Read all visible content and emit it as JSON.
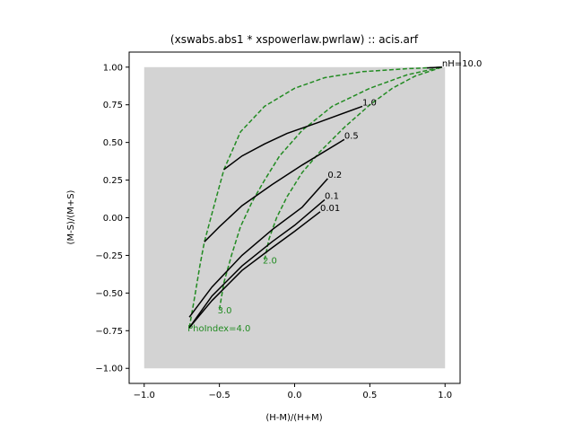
{
  "chart_data": {
    "type": "line",
    "title": "(xswabs.abs1 * xspowerlaw.pwrlaw) :: acis.arf",
    "xlabel": "(H-M)/(H+M)",
    "ylabel": "(M-S)/(M+S)",
    "xlim": [
      -1.1,
      1.1
    ],
    "ylim": [
      -1.1,
      1.1
    ],
    "xticks": [
      -1.0,
      -0.5,
      0.0,
      0.5,
      1.0
    ],
    "xtick_labels": [
      "−1.0",
      "−0.5",
      "0.0",
      "0.5",
      "1.0"
    ],
    "yticks": [
      -1.0,
      -0.75,
      -0.5,
      -0.25,
      0.0,
      0.25,
      0.5,
      0.75,
      1.0
    ],
    "ytick_labels": [
      "−1.00",
      "−0.75",
      "−0.50",
      "−0.25",
      "0.00",
      "0.25",
      "0.50",
      "0.75",
      "1.00"
    ],
    "grid": false,
    "background_region": {
      "x": [
        -1.0,
        1.0
      ],
      "y": [
        -1.0,
        1.0
      ],
      "color": "#d3d3d3"
    },
    "colors": {
      "nh_curves": "#000000",
      "gamma_curves": "#228b22"
    },
    "nh_series": [
      {
        "name": "0.01",
        "label": "0.01",
        "points": [
          [
            -0.7,
            -0.73
          ],
          [
            -0.55,
            -0.55
          ],
          [
            -0.35,
            -0.35
          ],
          [
            -0.15,
            -0.2
          ],
          [
            0.0,
            -0.09
          ],
          [
            0.17,
            0.04
          ]
        ]
      },
      {
        "name": "0.1",
        "label": "0.1",
        "points": [
          [
            -0.7,
            -0.73
          ],
          [
            -0.55,
            -0.52
          ],
          [
            -0.35,
            -0.32
          ],
          [
            -0.15,
            -0.16
          ],
          [
            0.0,
            -0.05
          ],
          [
            0.2,
            0.12
          ]
        ]
      },
      {
        "name": "0.2",
        "label": "0.2",
        "points": [
          [
            -0.7,
            -0.66
          ],
          [
            -0.55,
            -0.46
          ],
          [
            -0.35,
            -0.25
          ],
          [
            -0.15,
            -0.08
          ],
          [
            0.05,
            0.07
          ],
          [
            0.22,
            0.26
          ]
        ]
      },
      {
        "name": "0.5",
        "label": "0.5",
        "points": [
          [
            -0.6,
            -0.16
          ],
          [
            -0.5,
            -0.06
          ],
          [
            -0.35,
            0.08
          ],
          [
            -0.15,
            0.22
          ],
          [
            0.05,
            0.35
          ],
          [
            0.33,
            0.52
          ]
        ]
      },
      {
        "name": "1.0",
        "label": "1.0",
        "points": [
          [
            -0.47,
            0.32
          ],
          [
            -0.35,
            0.41
          ],
          [
            -0.2,
            0.49
          ],
          [
            -0.05,
            0.56
          ],
          [
            0.15,
            0.63
          ],
          [
            0.45,
            0.74
          ]
        ]
      },
      {
        "name": "10.0",
        "label": "nH=10.0",
        "points": [
          [
            0.88,
            0.995
          ],
          [
            0.98,
            1.0
          ]
        ]
      }
    ],
    "gamma_series": [
      {
        "name": "4.0",
        "label": "PhoIndex=4.0",
        "points": [
          [
            -0.7,
            -0.73
          ],
          [
            -0.66,
            -0.5
          ],
          [
            -0.63,
            -0.32
          ],
          [
            -0.6,
            -0.16
          ],
          [
            -0.53,
            0.1
          ],
          [
            -0.47,
            0.32
          ],
          [
            -0.36,
            0.57
          ],
          [
            -0.2,
            0.74
          ],
          [
            0.0,
            0.86
          ],
          [
            0.2,
            0.93
          ],
          [
            0.45,
            0.97
          ],
          [
            0.75,
            0.99
          ],
          [
            0.98,
            1.0
          ]
        ]
      },
      {
        "name": "3.0",
        "label": "3.0",
        "points": [
          [
            -0.5,
            -0.61
          ],
          [
            -0.47,
            -0.43
          ],
          [
            -0.42,
            -0.25
          ],
          [
            -0.36,
            -0.06
          ],
          [
            -0.28,
            0.11
          ],
          [
            -0.2,
            0.25
          ],
          [
            -0.1,
            0.41
          ],
          [
            0.05,
            0.58
          ],
          [
            0.25,
            0.74
          ],
          [
            0.5,
            0.86
          ],
          [
            0.75,
            0.95
          ],
          [
            0.98,
            1.0
          ]
        ]
      },
      {
        "name": "2.0",
        "label": "2.0",
        "points": [
          [
            -0.2,
            -0.28
          ],
          [
            -0.17,
            -0.14
          ],
          [
            -0.12,
            0.0
          ],
          [
            -0.05,
            0.14
          ],
          [
            0.05,
            0.3
          ],
          [
            0.17,
            0.44
          ],
          [
            0.33,
            0.6
          ],
          [
            0.5,
            0.75
          ],
          [
            0.65,
            0.86
          ],
          [
            0.8,
            0.94
          ],
          [
            0.98,
            1.0
          ]
        ]
      }
    ]
  }
}
